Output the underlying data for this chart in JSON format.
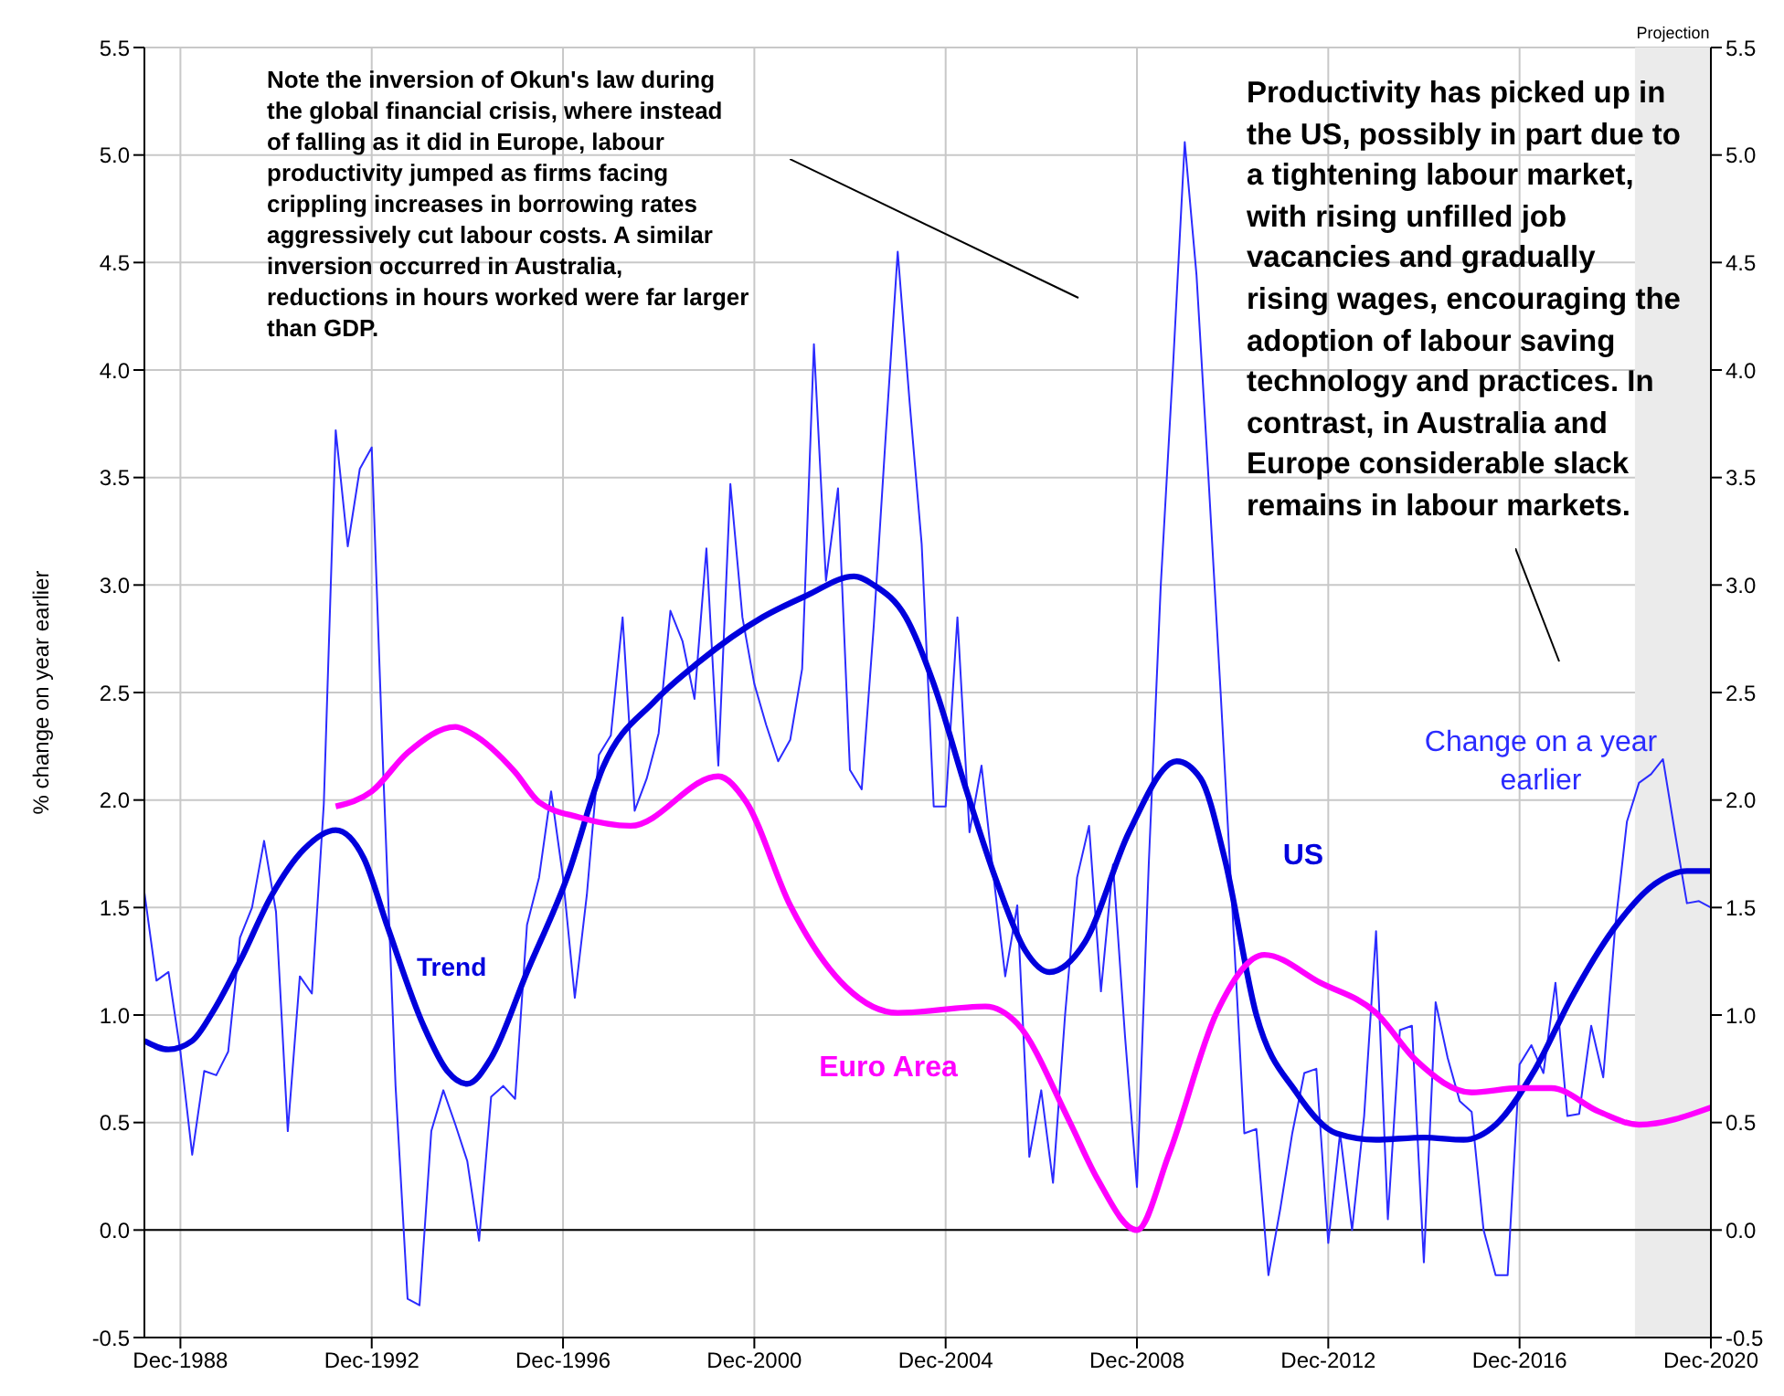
{
  "chart_data": {
    "type": "line",
    "ylabel": "% change on year earlier",
    "annotations": [
      "Note the inversion of Okun's law during the global financial crisis, where instead of falling as it did in Europe, labour productivity jumped as firms facing crippling increases in borrowing rates aggressively cut labour costs.  A similar inversion occurred in Australia, reductions in hours worked were far larger than GDP.",
      "Productivity has picked up in the US, possibly in part due to a tightening labour market, with rising unfilled job vacancies and gradually rising wages, encouraging the adoption of labour saving technology and practices.  In contrast, in Australia and Europe considerable slack remains in labour markets.",
      "Trend"
    ],
    "x": [
      "1988-03",
      "1988-06",
      "1988-09",
      "1988-12",
      "1989-03",
      "1989-06",
      "1989-09",
      "1989-12",
      "1990-03",
      "1990-06",
      "1990-09",
      "1990-12",
      "1991-03",
      "1991-06",
      "1991-09",
      "1991-12",
      "1992-03",
      "1992-06",
      "1992-09",
      "1992-12",
      "1993-03",
      "1993-06",
      "1993-09",
      "1993-12",
      "1994-03",
      "1994-06",
      "1994-09",
      "1994-12",
      "1995-03",
      "1995-06",
      "1995-09",
      "1995-12",
      "1996-03",
      "1996-06",
      "1996-09",
      "1996-12",
      "1997-03",
      "1997-06",
      "1997-09",
      "1997-12",
      "1998-03",
      "1998-06",
      "1998-09",
      "1998-12",
      "1999-03",
      "1999-06",
      "1999-09",
      "1999-12",
      "2000-03",
      "2000-06",
      "2000-09",
      "2000-12",
      "2001-03",
      "2001-06",
      "2001-09",
      "2001-12",
      "2002-03",
      "2002-06",
      "2002-09",
      "2002-12",
      "2003-03",
      "2003-06",
      "2003-09",
      "2003-12",
      "2004-03",
      "2004-06",
      "2004-09",
      "2004-12",
      "2005-03",
      "2005-06",
      "2005-09",
      "2005-12",
      "2006-03",
      "2006-06",
      "2006-09",
      "2006-12",
      "2007-03",
      "2007-06",
      "2007-09",
      "2007-12",
      "2008-03",
      "2008-06",
      "2008-09",
      "2008-12",
      "2009-03",
      "2009-06",
      "2009-09",
      "2009-12",
      "2010-03",
      "2010-06",
      "2010-09",
      "2010-12",
      "2011-03",
      "2011-06",
      "2011-09",
      "2011-12",
      "2012-03",
      "2012-06",
      "2012-09",
      "2012-12",
      "2013-03",
      "2013-06",
      "2013-09",
      "2013-12",
      "2014-03",
      "2014-06",
      "2014-09",
      "2014-12",
      "2015-03",
      "2015-06",
      "2015-09",
      "2015-12",
      "2016-03",
      "2016-06",
      "2016-09",
      "2016-12",
      "2017-03",
      "2017-06",
      "2017-09",
      "2017-12",
      "2018-03",
      "2018-06",
      "2018-09",
      "2018-12",
      "2019-03",
      "2019-06",
      "2019-09",
      "2019-12",
      "2020-03",
      "2020-06",
      "2020-09",
      "2020-12"
    ],
    "series": [
      {
        "name": "Change on a year earlier",
        "color": "#2b2bff",
        "values": [
          1.57,
          1.16,
          1.2,
          0.83,
          0.35,
          0.74,
          0.72,
          0.83,
          1.36,
          1.5,
          1.81,
          1.48,
          0.46,
          1.18,
          1.1,
          1.98,
          3.72,
          3.18,
          3.54,
          3.64,
          2.1,
          0.67,
          -0.32,
          -0.35,
          0.46,
          0.65,
          0.49,
          0.32,
          -0.05,
          0.62,
          0.67,
          0.61,
          1.42,
          1.64,
          2.04,
          1.64,
          1.08,
          1.56,
          2.21,
          2.3,
          2.85,
          1.95,
          2.1,
          2.31,
          2.88,
          2.74,
          2.47,
          3.17,
          2.16,
          3.47,
          2.85,
          2.54,
          2.35,
          2.18,
          2.28,
          2.61,
          4.12,
          3.02,
          3.45,
          2.14,
          2.05,
          2.81,
          3.7,
          4.55,
          3.85,
          3.19,
          1.97,
          1.97,
          2.85,
          1.85,
          2.16,
          1.65,
          1.18,
          1.51,
          0.34,
          0.65,
          0.22,
          1.0,
          1.64,
          1.88,
          1.11,
          1.7,
          0.9,
          0.2,
          1.7,
          3.0,
          4.0,
          5.06,
          4.44,
          3.49,
          2.5,
          1.48,
          0.45,
          0.47,
          -0.21,
          0.1,
          0.45,
          0.73,
          0.75,
          -0.06,
          0.45,
          0.0,
          0.53,
          1.39,
          0.05,
          0.93,
          0.95,
          -0.15,
          1.06,
          0.8,
          0.6,
          0.55,
          0.0,
          -0.21,
          -0.21,
          0.77,
          0.86,
          0.73,
          1.15,
          0.53,
          0.54,
          0.95,
          0.71,
          1.41,
          1.9,
          2.08,
          2.12,
          2.19,
          1.85,
          1.52,
          1.53,
          1.5
        ]
      },
      {
        "name": "US",
        "color": "#0000dd",
        "x": [
          "1988-03",
          "1988-09",
          "1989-03",
          "1989-08",
          "1990-03",
          "1990-11",
          "1991-07",
          "1992-03",
          "1992-10",
          "1993-04",
          "1994-01",
          "1994-07",
          "1994-12",
          "1995-06",
          "1996-03",
          "1997-01",
          "1997-10",
          "1998-11",
          "1999-10",
          "2001-02",
          "2002-01",
          "2003-01",
          "2003-06",
          "2004-02",
          "2004-09",
          "2005-05",
          "2006-01",
          "2006-08",
          "2007-02",
          "2007-11",
          "2008-10",
          "2009-10",
          "2010-04",
          "2010-10",
          "2011-06",
          "2012-04",
          "2013-02",
          "2013-12",
          "2014-12",
          "2015-10",
          "2016-06",
          "2017-04",
          "2018-01",
          "2018-12",
          "2019-10",
          "2020-06",
          "2020-12"
        ],
        "values": [
          0.88,
          0.84,
          0.88,
          1.01,
          1.25,
          1.56,
          1.77,
          1.86,
          1.73,
          1.41,
          0.95,
          0.74,
          0.68,
          0.8,
          1.2,
          1.64,
          2.15,
          2.46,
          2.64,
          2.85,
          2.95,
          3.04,
          3.0,
          2.85,
          2.54,
          2.06,
          1.61,
          1.3,
          1.2,
          1.34,
          1.85,
          2.18,
          2.1,
          1.73,
          1.0,
          0.64,
          0.45,
          0.42,
          0.43,
          0.42,
          0.49,
          0.75,
          1.08,
          1.41,
          1.61,
          1.67,
          1.67
        ]
      },
      {
        "name": "Euro Area",
        "color": "#ff00ff",
        "x": [
          "1992-03",
          "1992-12",
          "1993-09",
          "1994-09",
          "1995-01",
          "1995-12",
          "1996-06",
          "1997-04",
          "1998-05",
          "2000-03",
          "2000-10",
          "2001-09",
          "2002-11",
          "2003-12",
          "2005-10",
          "2006-06",
          "2007-07",
          "2008-02",
          "2008-12",
          "2009-08",
          "2010-08",
          "2011-08",
          "2012-10",
          "2013-12",
          "2014-10",
          "2015-12",
          "2016-12",
          "2017-08",
          "2018-08",
          "2019-06",
          "2020-12"
        ],
        "values": [
          1.97,
          2.04,
          2.22,
          2.34,
          2.31,
          2.13,
          1.99,
          1.92,
          1.88,
          2.11,
          1.99,
          1.51,
          1.13,
          1.01,
          1.04,
          0.96,
          0.51,
          0.24,
          0.0,
          0.35,
          1.01,
          1.28,
          1.15,
          1.01,
          0.79,
          0.64,
          0.66,
          0.66,
          0.55,
          0.49,
          0.57
        ]
      }
    ],
    "xlim": [
      "1988-03",
      "2020-12"
    ],
    "xticks": [
      {
        "value": "1988-12",
        "label": "Dec-1988"
      },
      {
        "value": "1992-12",
        "label": "Dec-1992"
      },
      {
        "value": "1996-12",
        "label": "Dec-1996"
      },
      {
        "value": "2000-12",
        "label": "Dec-2000"
      },
      {
        "value": "2004-12",
        "label": "Dec-2004"
      },
      {
        "value": "2008-12",
        "label": "Dec-2008"
      },
      {
        "value": "2012-12",
        "label": "Dec-2012"
      },
      {
        "value": "2016-12",
        "label": "Dec-2016"
      },
      {
        "value": "2020-12",
        "label": "Dec-2020"
      }
    ],
    "ylim": [
      -0.5,
      5.5
    ],
    "yticks": [
      -0.5,
      {
        "value": 0,
        "label": "0.0"
      },
      0.5,
      {
        "value": 1,
        "label": "1.0"
      },
      1.5,
      {
        "value": 2,
        "label": "2.0"
      },
      2.5,
      {
        "value": 3,
        "label": "3.0"
      },
      3.5,
      {
        "value": 4,
        "label": "4.0"
      },
      4.5,
      {
        "value": 5,
        "label": "5.0"
      },
      5.5
    ],
    "y2lim": [
      -0.5,
      5.5
    ],
    "y2ticks": [
      -0.5,
      {
        "value": 0,
        "label": "0.0"
      },
      0.5,
      {
        "value": 1,
        "label": "1.0"
      },
      1.5,
      {
        "value": 2,
        "label": "2.0"
      },
      2.5,
      {
        "value": 3,
        "label": "3.0"
      },
      3.5,
      {
        "value": 4,
        "label": "4.0"
      },
      4.5,
      {
        "value": 5,
        "label": "5.0"
      },
      5.5
    ],
    "ref_lines": [
      {
        "axis": "y",
        "value": 0,
        "color": "#000000"
      }
    ],
    "bands": [
      {
        "axis": "x",
        "from": "2019-05",
        "to": "2020-12",
        "label": "Projection",
        "color": "#ebebeb"
      }
    ],
    "grid": true,
    "legend": false,
    "marker": "none",
    "line_style": "solid"
  }
}
